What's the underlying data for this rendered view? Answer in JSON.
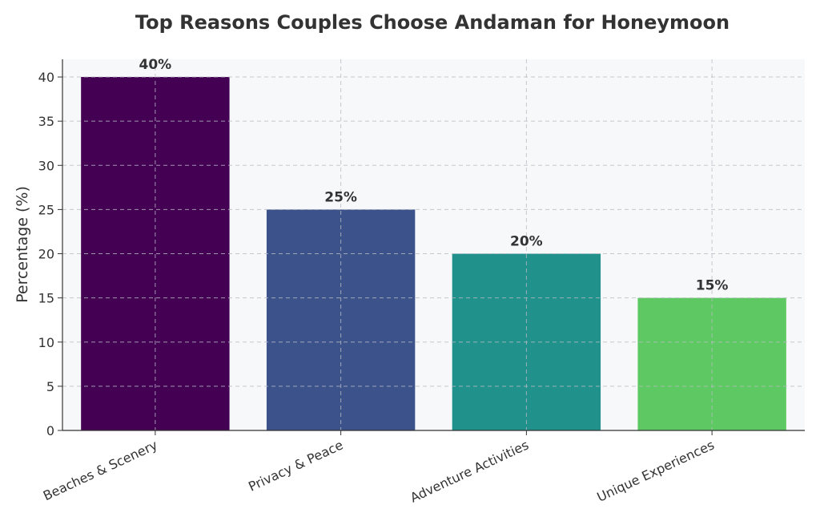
{
  "chart_data": {
    "type": "bar",
    "title": "Top Reasons Couples Choose Andaman for Honeymoon",
    "xlabel": "",
    "ylabel": "Percentage (%)",
    "categories": [
      "Beaches & Scenery",
      "Privacy & Peace",
      "Adventure Activities",
      "Unique Experiences"
    ],
    "values": [
      40,
      25,
      20,
      15
    ],
    "data_labels": [
      "40%",
      "25%",
      "20%",
      "15%"
    ],
    "colors": [
      "#440154",
      "#3b528b",
      "#21918c",
      "#5ec962"
    ],
    "ylim": [
      0,
      42
    ],
    "yticks": [
      0,
      5,
      10,
      15,
      20,
      25,
      30,
      35,
      40
    ],
    "grid": true,
    "background": "#f7f8fa",
    "xtick_rotation": 25
  }
}
